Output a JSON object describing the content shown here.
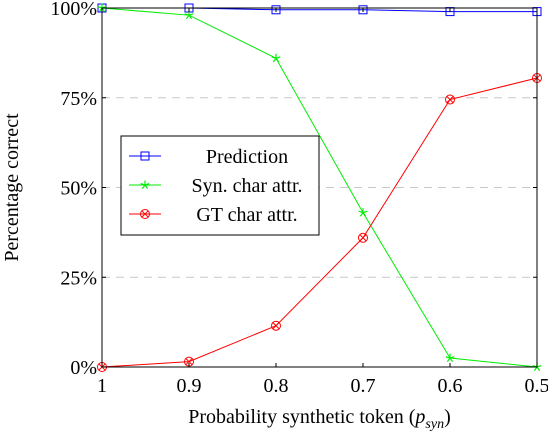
{
  "chart_data": {
    "type": "line",
    "title": "",
    "xlabel": "Probability synthetic token",
    "xlabel_math": "p",
    "xlabel_sub": "syn",
    "ylabel": "Percentage correct",
    "x": [
      1,
      0.9,
      0.8,
      0.7,
      0.6,
      0.5
    ],
    "x_tick_labels": [
      "1",
      "0.9",
      "0.8",
      "0.7",
      "0.6",
      "0.5"
    ],
    "ylim": [
      0,
      100
    ],
    "y_ticks": [
      0,
      25,
      50,
      75,
      100
    ],
    "y_tick_labels": [
      "0%",
      "25%",
      "50%",
      "75%",
      "100%"
    ],
    "grid": "horizontal dashed",
    "legend_position": "center-left",
    "series": [
      {
        "name": "Prediction",
        "color": "#0000ff",
        "marker": "square",
        "values": [
          100,
          100,
          99.5,
          99.5,
          99,
          99
        ]
      },
      {
        "name": "Syn. char attr.",
        "color": "#00ee00",
        "marker": "star",
        "values": [
          100,
          98,
          86,
          43,
          2.5,
          0
        ]
      },
      {
        "name": "GT char attr.",
        "color": "#ff0000",
        "marker": "circle-x",
        "values": [
          0,
          1.5,
          11.5,
          36,
          74.5,
          80.5
        ]
      }
    ]
  }
}
